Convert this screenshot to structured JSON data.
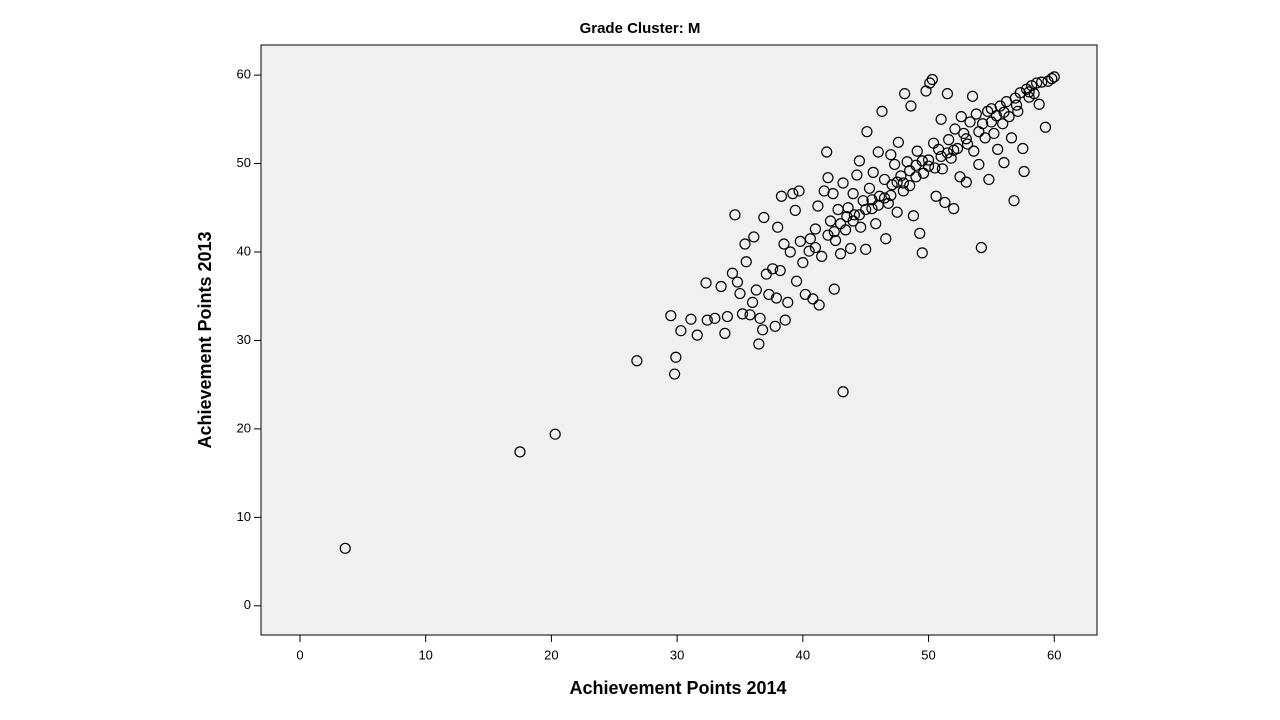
{
  "chart_data": {
    "type": "scatter",
    "title": "Grade Cluster: M",
    "x_label": "Achievement Points 2014",
    "y_label": "Achievement Points 2013",
    "xlim": [
      -3.1,
      63.4
    ],
    "ylim": [
      -3.3,
      63.4
    ],
    "xticks": [
      0,
      10,
      20,
      30,
      40,
      50,
      60
    ],
    "yticks": [
      0,
      10,
      20,
      30,
      40,
      50,
      60
    ],
    "color": "#000000",
    "background": "#f0f0f0",
    "x": [
      3.6,
      17.5,
      20.3,
      26.8,
      29.9,
      29.8,
      29.5,
      30.3,
      31.1,
      31.6,
      32.3,
      32.4,
      33.0,
      33.5,
      33.8,
      34.0,
      34.4,
      34.6,
      34.8,
      35.0,
      35.2,
      35.4,
      35.5,
      35.8,
      36.0,
      36.1,
      36.3,
      36.5,
      36.6,
      36.8,
      36.9,
      37.1,
      37.3,
      37.6,
      37.8,
      37.9,
      38.0,
      38.2,
      38.3,
      38.5,
      38.6,
      38.8,
      39.0,
      39.2,
      39.4,
      39.5,
      39.7,
      39.8,
      40.0,
      40.2,
      40.5,
      40.6,
      40.8,
      41.0,
      41.2,
      41.3,
      41.5,
      41.7,
      41.9,
      42.0,
      42.2,
      42.4,
      42.5,
      42.6,
      42.8,
      43.0,
      43.2,
      43.4,
      43.6,
      43.8,
      44.0,
      44.1,
      44.3,
      44.5,
      44.6,
      44.8,
      45.0,
      45.1,
      45.3,
      45.5,
      45.6,
      45.8,
      46.0,
      46.1,
      46.3,
      46.5,
      46.6,
      46.8,
      47.0,
      47.1,
      47.3,
      47.5,
      47.6,
      47.8,
      48.0,
      48.1,
      48.3,
      48.5,
      48.6,
      48.8,
      49.0,
      49.1,
      49.3,
      49.5,
      49.6,
      49.8,
      50.0,
      50.1,
      50.3,
      50.4,
      50.6,
      50.8,
      51.0,
      51.1,
      51.3,
      51.5,
      51.6,
      51.8,
      52.0,
      52.1,
      52.3,
      52.5,
      52.6,
      52.8,
      53.0,
      53.1,
      53.3,
      53.5,
      53.6,
      53.8,
      54.0,
      54.2,
      54.3,
      54.5,
      54.7,
      54.8,
      55.0,
      55.2,
      55.4,
      55.5,
      55.7,
      55.9,
      56.0,
      56.2,
      56.4,
      56.6,
      56.8,
      56.9,
      57.1,
      57.3,
      57.5,
      57.6,
      57.8,
      58.0,
      58.2,
      58.4,
      58.6,
      58.8,
      59.0,
      59.3,
      59.5,
      59.8,
      60.0,
      41.0,
      42.0,
      43.0,
      44.0,
      45.0,
      46.0,
      47.0,
      48.0,
      49.0,
      50.0,
      51.0,
      52.0,
      53.0,
      54.0,
      55.0,
      56.0,
      57.0,
      58.0,
      49.5,
      50.5,
      51.5,
      48.5,
      47.5,
      46.5,
      45.5,
      44.5,
      43.5,
      42.5,
      43.2
    ],
    "y": [
      6.5,
      17.4,
      19.4,
      27.7,
      28.1,
      26.2,
      32.8,
      31.1,
      32.4,
      30.6,
      36.5,
      32.3,
      32.5,
      36.1,
      30.8,
      32.7,
      37.6,
      44.2,
      36.6,
      35.3,
      33.0,
      40.9,
      38.9,
      32.9,
      34.3,
      41.7,
      35.7,
      29.6,
      32.5,
      31.2,
      43.9,
      37.5,
      35.2,
      38.1,
      31.6,
      34.8,
      42.8,
      37.9,
      46.3,
      40.9,
      32.3,
      34.3,
      40.0,
      46.6,
      44.7,
      36.7,
      46.9,
      41.2,
      38.8,
      35.2,
      40.1,
      41.5,
      34.7,
      42.6,
      45.2,
      34.0,
      39.5,
      46.9,
      51.3,
      48.4,
      43.5,
      46.6,
      35.8,
      41.3,
      44.8,
      39.8,
      47.8,
      42.5,
      45.0,
      40.4,
      46.6,
      44.2,
      48.7,
      50.3,
      42.8,
      45.8,
      40.3,
      53.6,
      47.2,
      44.9,
      49.0,
      43.2,
      51.3,
      46.3,
      55.9,
      48.2,
      41.5,
      45.5,
      51.0,
      47.6,
      49.9,
      44.5,
      52.4,
      48.6,
      46.9,
      57.9,
      50.2,
      47.5,
      56.5,
      44.1,
      49.8,
      51.4,
      42.1,
      39.9,
      48.9,
      58.2,
      50.4,
      59.1,
      59.5,
      52.3,
      46.3,
      51.6,
      55.0,
      49.4,
      45.6,
      57.9,
      52.7,
      50.6,
      44.9,
      53.9,
      51.7,
      48.5,
      55.3,
      53.4,
      47.9,
      52.2,
      54.7,
      57.6,
      51.4,
      55.6,
      49.9,
      40.5,
      54.5,
      52.9,
      55.9,
      48.2,
      56.2,
      53.4,
      55.4,
      51.6,
      56.5,
      54.5,
      50.1,
      57.0,
      55.3,
      52.9,
      45.8,
      57.4,
      55.9,
      58.0,
      51.7,
      49.1,
      58.4,
      57.5,
      58.8,
      57.9,
      59.1,
      56.7,
      59.2,
      54.1,
      59.3,
      59.6,
      59.8,
      40.5,
      41.9,
      43.2,
      43.5,
      44.8,
      45.3,
      46.4,
      47.8,
      48.5,
      49.7,
      50.8,
      51.5,
      52.8,
      53.6,
      54.7,
      55.8,
      56.6,
      58.1,
      50.3,
      49.5,
      51.2,
      49.2,
      47.9,
      46.1,
      45.9,
      44.2,
      44.0,
      42.3,
      24.2
    ]
  }
}
